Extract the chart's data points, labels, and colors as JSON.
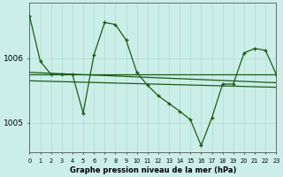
{
  "title": "Graphe pression niveau de la mer (hPa)",
  "background_color": "#cceee8",
  "grid_color": "#aaddcc",
  "line_color": "#1a5c1a",
  "xlim": [
    0,
    23
  ],
  "ylim": [
    1004.55,
    1006.85
  ],
  "yticks": [
    1005.0,
    1006.0
  ],
  "xticks": [
    0,
    1,
    2,
    3,
    4,
    5,
    6,
    7,
    8,
    9,
    10,
    11,
    12,
    13,
    14,
    15,
    16,
    17,
    18,
    19,
    20,
    21,
    22,
    23
  ],
  "main_series": {
    "x": [
      0,
      1,
      2,
      3,
      4,
      5,
      6,
      7,
      8,
      9,
      10,
      11,
      12,
      13,
      14,
      15,
      16,
      17,
      18,
      19,
      20,
      21,
      22,
      23
    ],
    "y": [
      1006.65,
      1005.95,
      1005.75,
      1005.75,
      1005.75,
      1005.15,
      1006.05,
      1006.55,
      1006.52,
      1006.28,
      1005.78,
      1005.58,
      1005.42,
      1005.3,
      1005.18,
      1005.05,
      1004.65,
      1005.08,
      1005.6,
      1005.6,
      1006.08,
      1006.15,
      1006.12,
      1005.75
    ]
  },
  "flat_line1": {
    "x": [
      0,
      23
    ],
    "y": [
      1005.75,
      1005.75
    ]
  },
  "flat_line2": {
    "x": [
      0,
      23
    ],
    "y": [
      1005.65,
      1005.55
    ]
  },
  "trend_line": {
    "x": [
      0,
      23
    ],
    "y": [
      1005.78,
      1005.62
    ]
  }
}
